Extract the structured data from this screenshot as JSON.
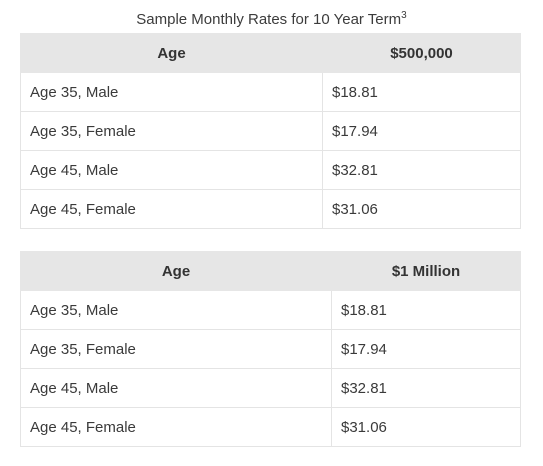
{
  "caption": {
    "text": "Sample Monthly Rates for 10 Year Term",
    "footnote": "3"
  },
  "tables": [
    {
      "headers": [
        "Age",
        "$500,000"
      ],
      "rows": [
        [
          "Age 35, Male",
          "$18.81"
        ],
        [
          "Age 35, Female",
          "$17.94"
        ],
        [
          "Age 45, Male",
          "$32.81"
        ],
        [
          "Age 45, Female",
          "$31.06"
        ]
      ]
    },
    {
      "headers": [
        "Age",
        "$1 Million"
      ],
      "rows": [
        [
          "Age 35, Male",
          "$18.81"
        ],
        [
          "Age 35, Female",
          "$17.94"
        ],
        [
          "Age 45, Male",
          "$32.81"
        ],
        [
          "Age 45, Female",
          "$31.06"
        ]
      ]
    }
  ]
}
